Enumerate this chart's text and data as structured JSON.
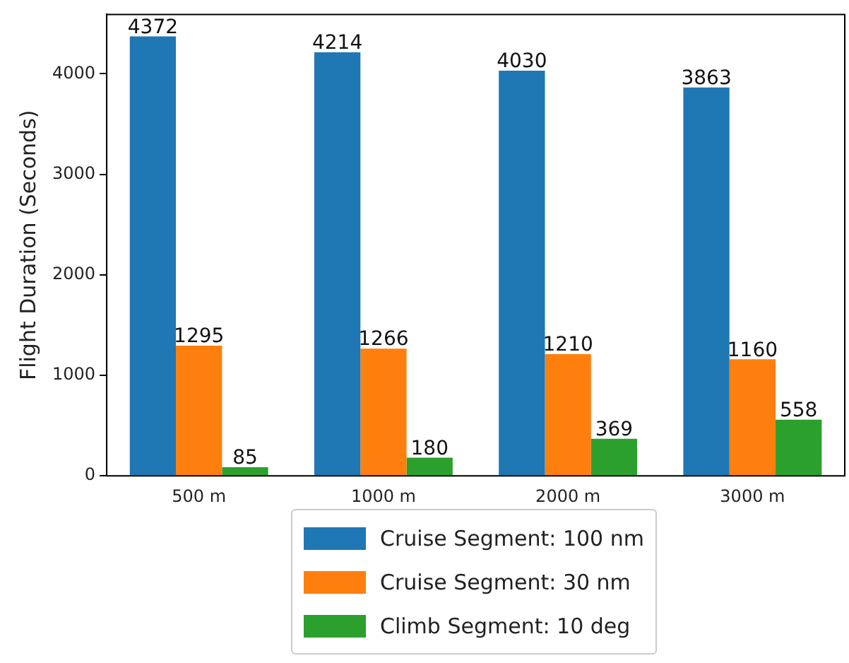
{
  "chart_data": {
    "type": "bar",
    "ylabel": "Flight Duration (Seconds)",
    "categories": [
      "500 m",
      "1000 m",
      "2000 m",
      "3000 m"
    ],
    "series": [
      {
        "name": "Cruise Segment: 100 nm",
        "color": "#1f77b4",
        "values": [
          4372,
          4214,
          4030,
          3863
        ]
      },
      {
        "name": "Cruise Segment: 30 nm",
        "color": "#ff7f0e",
        "values": [
          1295,
          1266,
          1210,
          1160
        ]
      },
      {
        "name": "Climb Segment: 10 deg",
        "color": "#2ca02c",
        "values": [
          85,
          180,
          369,
          558
        ]
      }
    ],
    "ylim": [
      0,
      4590
    ],
    "yticks": [
      0,
      1000,
      2000,
      3000,
      4000
    ],
    "grid": false,
    "legend": "bottom",
    "data_labels": true
  }
}
